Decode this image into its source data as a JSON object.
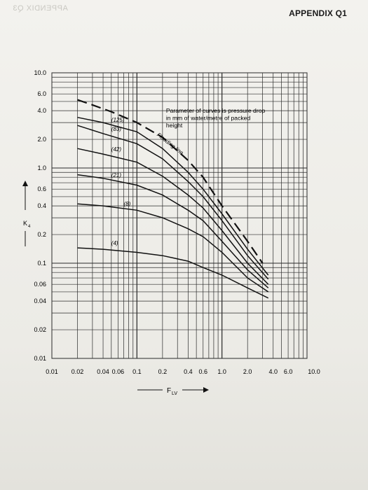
{
  "page": {
    "mirrored_text": "APPENDIX Q3",
    "title": "APPENDIX Q1"
  },
  "chart_data": {
    "type": "line",
    "xscale": "log",
    "yscale": "log",
    "xlim": [
      0.01,
      10.0
    ],
    "ylim": [
      0.01,
      10.0
    ],
    "x_ticks": [
      "0.01",
      "0.02",
      "0.04",
      "0.06",
      "0.1",
      "0.2",
      "0.4",
      "0.6",
      "1.0",
      "2.0",
      "4.0",
      "6.0",
      "10.0"
    ],
    "y_ticks": [
      "10.0",
      "6.0",
      "4.0",
      "2.0",
      "1.0",
      "0.6",
      "0.4",
      "0.2",
      "0.1",
      "0.06",
      "0.04",
      "0.02",
      "0.01"
    ],
    "xlabel": "F",
    "xlabel_sub": "LV",
    "ylabel": "K",
    "ylabel_sub": "4",
    "annotation": [
      "Parameter of curves is pressure drop",
      "in mm of water/metre of packed",
      "height"
    ],
    "flooding_label": "Flooding line",
    "grid": true,
    "series": [
      {
        "name": "Flooding line",
        "style": "dashed",
        "x": [
          0.02,
          0.03,
          0.05,
          0.1,
          0.2,
          0.4,
          0.6,
          1.0,
          2.0,
          3.0
        ],
        "y": [
          5.2,
          4.6,
          3.9,
          3.0,
          2.1,
          1.2,
          0.8,
          0.4,
          0.17,
          0.1
        ]
      },
      {
        "name": "(125)",
        "x": [
          0.02,
          0.04,
          0.1,
          0.2,
          0.4,
          0.6,
          1.0,
          2.0,
          3.5
        ],
        "y": [
          3.4,
          3.0,
          2.4,
          1.6,
          0.9,
          0.6,
          0.33,
          0.14,
          0.075
        ]
      },
      {
        "name": "(83)",
        "x": [
          0.02,
          0.04,
          0.1,
          0.2,
          0.4,
          0.6,
          1.0,
          2.0,
          3.5
        ],
        "y": [
          2.8,
          2.3,
          1.8,
          1.25,
          0.72,
          0.5,
          0.28,
          0.12,
          0.068
        ]
      },
      {
        "name": "(42)",
        "x": [
          0.02,
          0.04,
          0.1,
          0.2,
          0.4,
          0.6,
          1.0,
          2.0,
          3.5
        ],
        "y": [
          1.6,
          1.4,
          1.15,
          0.82,
          0.52,
          0.38,
          0.22,
          0.1,
          0.06
        ]
      },
      {
        "name": "(21)",
        "x": [
          0.02,
          0.04,
          0.1,
          0.2,
          0.4,
          0.6,
          1.0,
          2.0,
          3.5
        ],
        "y": [
          0.85,
          0.78,
          0.66,
          0.52,
          0.36,
          0.28,
          0.17,
          0.085,
          0.055
        ]
      },
      {
        "name": "(8)",
        "x": [
          0.02,
          0.04,
          0.1,
          0.2,
          0.4,
          0.6,
          1.0,
          2.0,
          3.5
        ],
        "y": [
          0.42,
          0.4,
          0.36,
          0.3,
          0.23,
          0.19,
          0.13,
          0.07,
          0.05
        ]
      },
      {
        "name": "(4)",
        "x": [
          0.02,
          0.04,
          0.1,
          0.2,
          0.4,
          0.6,
          1.0,
          2.0,
          3.5
        ],
        "y": [
          0.145,
          0.14,
          0.13,
          0.12,
          0.105,
          0.09,
          0.075,
          0.055,
          0.043
        ]
      }
    ],
    "curve_labels": [
      {
        "text": "(125)",
        "x": 0.05,
        "y": 3.05
      },
      {
        "text": "(83)",
        "x": 0.05,
        "y": 2.45
      },
      {
        "text": "(42)",
        "x": 0.05,
        "y": 1.5
      },
      {
        "text": "(21)",
        "x": 0.05,
        "y": 0.8
      },
      {
        "text": "(8)",
        "x": 0.07,
        "y": 0.4
      },
      {
        "text": "(4)",
        "x": 0.05,
        "y": 0.155
      }
    ]
  }
}
